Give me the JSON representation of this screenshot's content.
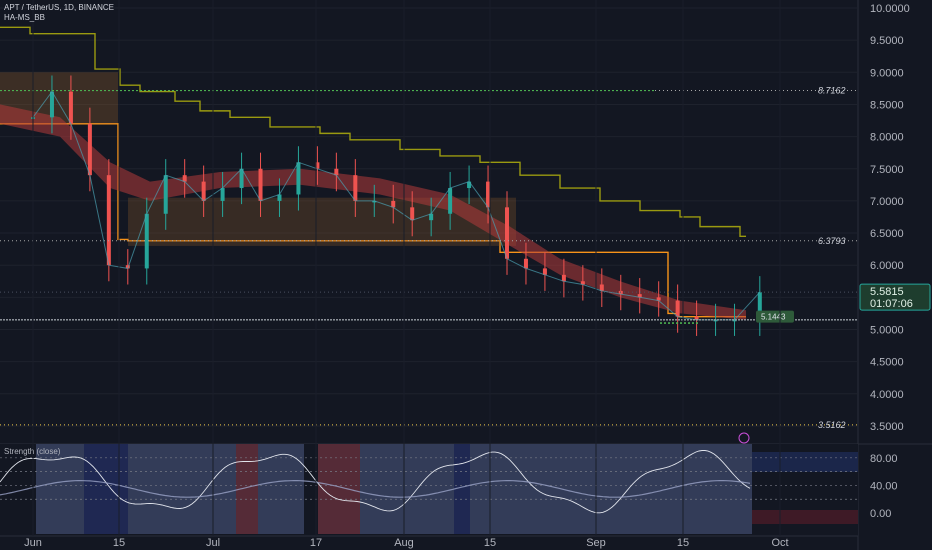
{
  "header": {
    "title": "APT / TetherUS, 1D, BINANCE",
    "indicator": "HA-MS_BB"
  },
  "subpane": {
    "label": "Strength (close)",
    "y_ticks": [
      "80.00",
      "40.00",
      "0.00"
    ],
    "alert_icon": "alert-circle-icon"
  },
  "colors": {
    "background": "#131722",
    "up_candle": "#26a69a",
    "down_candle": "#ef5350",
    "resistance_line": "#9a9a10",
    "support_line": "#f7931a",
    "ribbon": "#b23a3a",
    "green_level": "#4caf50"
  },
  "chart_data": {
    "type": "line",
    "title": "APT / TetherUS, 1D, BINANCE",
    "price_axis": {
      "ticks": [
        "10.0000",
        "9.5000",
        "9.0000",
        "8.5000",
        "8.0000",
        "7.5000",
        "7.0000",
        "6.5000",
        "6.0000",
        "5.5000",
        "5.0000",
        "4.5000",
        "4.0000",
        "3.5000"
      ],
      "ylim": [
        3.4,
        10.05
      ]
    },
    "time_axis": {
      "ticks": [
        "Jun",
        "15",
        "Jul",
        "17",
        "Aug",
        "15",
        "Sep",
        "15",
        "Oct"
      ]
    },
    "current_price": "5.5815",
    "countdown": "01:07:06",
    "level_labels": [
      "8.7162",
      "6.3793",
      "3.5162"
    ],
    "levels": [
      8.7162,
      6.3793,
      3.5162
    ],
    "price_tag": "5.1443",
    "series": [
      {
        "x": [
          "06-01",
          "06-04",
          "06-07",
          "06-10",
          "06-13",
          "06-16",
          "06-19",
          "06-22",
          "06-25",
          "06-28",
          "07-01",
          "07-04",
          "07-07",
          "07-10",
          "07-13",
          "07-16",
          "07-19",
          "07-22",
          "07-25",
          "07-28",
          "07-31",
          "08-03",
          "08-06",
          "08-09",
          "08-12",
          "08-15",
          "08-18",
          "08-21",
          "08-24",
          "08-27",
          "08-30",
          "09-02",
          "09-05",
          "09-08",
          "09-11",
          "09-14",
          "09-17",
          "09-20",
          "09-24"
        ],
        "values": [
          8.3,
          8.7,
          8.2,
          7.4,
          6.0,
          5.95,
          6.8,
          7.4,
          7.3,
          7.0,
          7.2,
          7.5,
          7.0,
          7.1,
          7.6,
          7.5,
          7.4,
          7.0,
          7.0,
          6.9,
          6.7,
          6.8,
          7.2,
          7.3,
          6.9,
          6.1,
          5.95,
          5.85,
          5.75,
          5.7,
          5.6,
          5.55,
          5.5,
          5.45,
          5.2,
          5.15,
          5.15,
          5.15,
          5.58
        ]
      }
    ],
    "strength_ylim": [
      -10,
      100
    ]
  }
}
